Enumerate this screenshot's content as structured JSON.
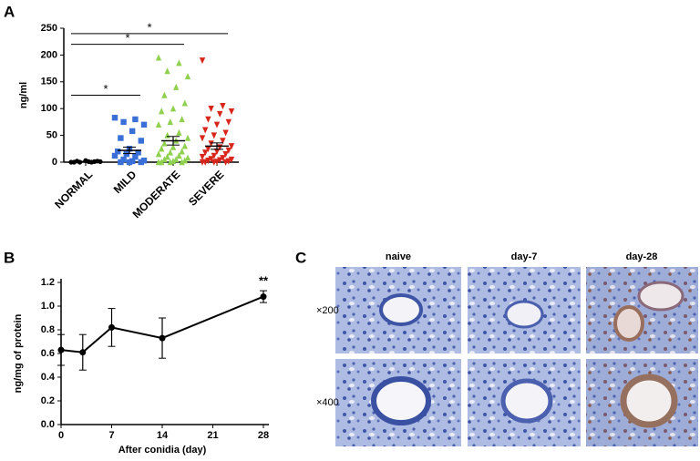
{
  "panel_labels": [
    "A",
    "B",
    "C"
  ],
  "chart_data": [
    {
      "type": "dotplot",
      "ylabel": "ng/ml",
      "categories": [
        "NORMAL",
        "MILD",
        "MODERATE",
        "SEVERE"
      ],
      "groups": [
        {
          "color": "#000000",
          "marker": "circle",
          "values": [
            0,
            0,
            0,
            1,
            1,
            2,
            2,
            3,
            0,
            1
          ],
          "mean": 1,
          "sem": 0.5
        },
        {
          "color": "#3a6fd8",
          "marker": "square",
          "values": [
            83,
            80,
            75,
            70,
            58,
            45,
            40,
            25,
            20,
            18,
            15,
            12,
            10,
            5,
            3,
            2,
            0,
            0,
            0
          ],
          "mean": 22,
          "sem": 6
        },
        {
          "color": "#8fd14f",
          "marker": "triangle",
          "values": [
            195,
            185,
            170,
            160,
            140,
            125,
            110,
            100,
            95,
            80,
            75,
            70,
            55,
            50,
            45,
            40,
            35,
            30,
            28,
            25,
            20,
            18,
            15,
            12,
            10,
            8,
            5,
            5,
            3,
            2,
            0,
            0,
            0,
            0
          ],
          "mean": 40,
          "sem": 8
        },
        {
          "color": "#d8261c",
          "marker": "triangle-down",
          "values": [
            190,
            105,
            100,
            95,
            90,
            80,
            75,
            70,
            60,
            55,
            50,
            45,
            40,
            35,
            30,
            28,
            25,
            22,
            20,
            18,
            15,
            12,
            10,
            8,
            6,
            5,
            4,
            3,
            2,
            1,
            0,
            0,
            0,
            0
          ],
          "mean": 30,
          "sem": 6
        }
      ],
      "significance": [
        {
          "span": [
            0,
            1
          ],
          "y": 125,
          "label": "*"
        },
        {
          "span": [
            0,
            2
          ],
          "y": 220,
          "label": "*"
        },
        {
          "span": [
            0,
            3
          ],
          "y": 240,
          "label": "*"
        }
      ],
      "ylim": [
        0,
        250
      ],
      "yticks": [
        0,
        50,
        100,
        150,
        200,
        250
      ]
    },
    {
      "type": "line",
      "ylabel": "ng/mg of protein",
      "xlabel": "After conidia (day)",
      "x": [
        0,
        3,
        7,
        14,
        28
      ],
      "values": [
        0.63,
        0.61,
        0.82,
        0.73,
        1.08
      ],
      "errors": [
        0.13,
        0.15,
        0.16,
        0.17,
        0.05
      ],
      "color": "#000000",
      "annotation": {
        "x": 28,
        "label": "**"
      },
      "xlim": [
        0,
        28
      ],
      "xticks": [
        0,
        7,
        14,
        21,
        28
      ],
      "ylim": [
        0,
        1.2
      ],
      "yticks": [
        {
          "value": 0,
          "label": "0.0"
        },
        0.2,
        0.4,
        0.6,
        0.8,
        {
          "value": 1,
          "label": "1.0"
        },
        1.2
      ]
    }
  ],
  "micrographs": {
    "columns": [
      "naive",
      "day-7",
      "day-28"
    ],
    "rows": [
      "×200",
      "×400"
    ]
  }
}
